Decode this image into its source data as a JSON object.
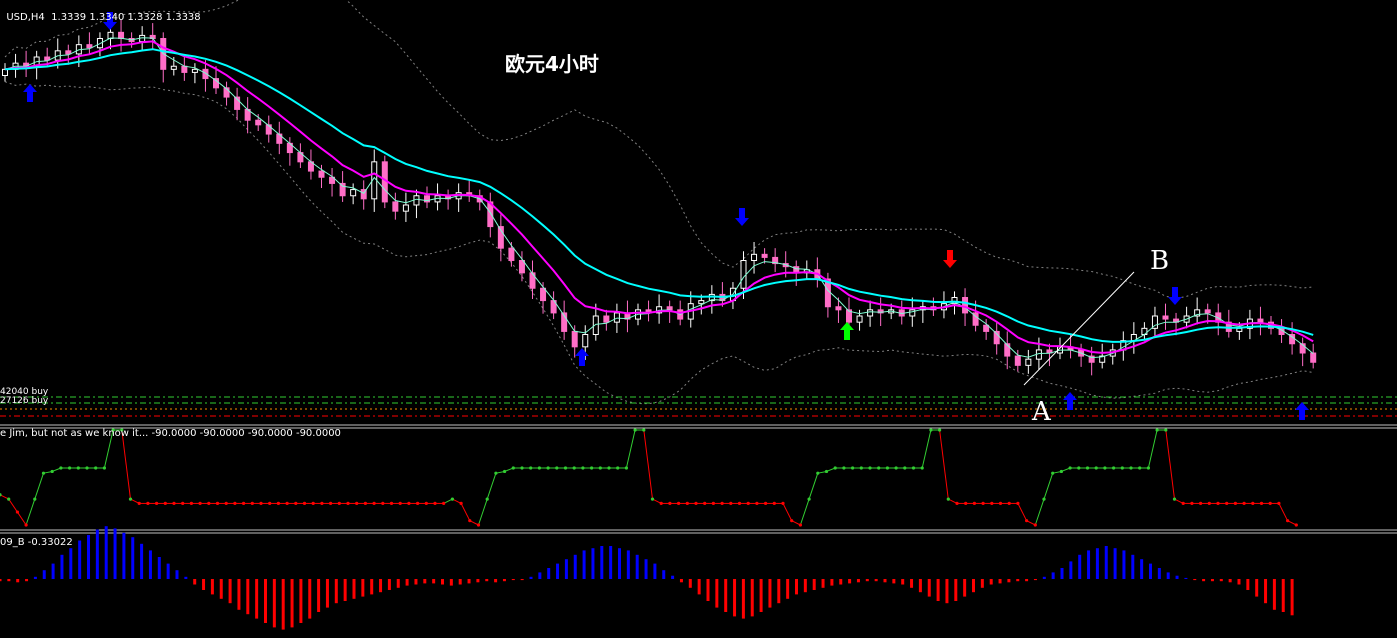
{
  "header": {
    "symbol": "USD,H4",
    "ohlc": "1.3339 1.3340 1.3328 1.3338"
  },
  "overlay_title": "欧元4小时",
  "annotations": {
    "a": "A",
    "b": "B"
  },
  "level_labels": [
    "42040 buy",
    "27126 buy"
  ],
  "indicator1": {
    "label": "e Jim, but not as we know it... -90.0000 -90.0000 -90.0000 -90.0000"
  },
  "indicator2": {
    "label": "09_B -0.33022"
  },
  "colors": {
    "background": "#000000",
    "bull_candle": "#ffffff",
    "bear_candle": "#ff6ec7",
    "ma_fast": "#ff00ff",
    "ma_slow": "#00ffff",
    "band": "#808080",
    "arrow_blue": "#0000ff",
    "arrow_red": "#ff0000",
    "arrow_green": "#00ff00",
    "osc_green": "#32cd32",
    "osc_red": "#ff0000",
    "hist_blue": "#0000ff",
    "hist_red": "#ff0000"
  },
  "chart_data": [
    {
      "type": "candlestick",
      "close": [
        1.3318,
        1.3322,
        1.332,
        1.3326,
        1.3324,
        1.333,
        1.3328,
        1.3334,
        1.3332,
        1.3338,
        1.3342,
        1.3338,
        1.3336,
        1.334,
        1.3338,
        1.3318,
        1.332,
        1.3316,
        1.3318,
        1.3312,
        1.3306,
        1.33,
        1.3292,
        1.3285,
        1.3282,
        1.3276,
        1.327,
        1.3264,
        1.3258,
        1.3252,
        1.3248,
        1.3244,
        1.3236,
        1.324,
        1.3234,
        1.3258,
        1.3232,
        1.3226,
        1.323,
        1.3236,
        1.3232,
        1.3236,
        1.3234,
        1.3238,
        1.3236,
        1.3232,
        1.3216,
        1.3202,
        1.3194,
        1.3186,
        1.3176,
        1.3168,
        1.316,
        1.3148,
        1.3138,
        1.3146,
        1.3158,
        1.3154,
        1.316,
        1.3156,
        1.3162,
        1.316,
        1.3164,
        1.3162,
        1.3156,
        1.3166,
        1.3168,
        1.3172,
        1.3168,
        1.3176,
        1.3194,
        1.3198,
        1.3196,
        1.3192,
        1.319,
        1.3186,
        1.3188,
        1.3182,
        1.3164,
        1.3162,
        1.3154,
        1.3158,
        1.3162,
        1.316,
        1.3162,
        1.3158,
        1.3162,
        1.3164,
        1.3162,
        1.3166,
        1.317,
        1.316,
        1.3152,
        1.3148,
        1.314,
        1.3132,
        1.3126,
        1.313,
        1.3136,
        1.3134,
        1.3138,
        1.3136,
        1.3132,
        1.3128,
        1.3132,
        1.3136,
        1.3142,
        1.3146,
        1.315,
        1.3158,
        1.3156,
        1.3154,
        1.3158,
        1.3162,
        1.316,
        1.3154,
        1.3148,
        1.315,
        1.3156,
        1.3154,
        1.315,
        1.3146,
        1.314,
        1.3134,
        1.3128
      ]
    },
    {
      "type": "line",
      "name": "oscillator",
      "values": [
        -55,
        -60,
        -75,
        -90,
        -60,
        -30,
        -28,
        -24,
        -24,
        -24,
        -24,
        -24,
        -24,
        20,
        20,
        -60,
        -65,
        -65,
        -65,
        -65,
        -65,
        -65,
        -65,
        -65,
        -65,
        -65,
        -65,
        -65,
        -65,
        -65,
        -65,
        -65,
        -65,
        -65,
        -65,
        -65,
        -65,
        -65,
        -65,
        -65,
        -65,
        -65,
        -65,
        -65,
        -65,
        -65,
        -65,
        -65,
        -65,
        -65,
        -65,
        -65,
        -60,
        -65,
        -85,
        -90,
        -60,
        -30,
        -28,
        -24,
        -24,
        -24,
        -24,
        -24,
        -24,
        -24,
        -24,
        -24,
        -24,
        -24,
        -24,
        -24,
        -24,
        20,
        20,
        -60,
        -65,
        -65,
        -65,
        -65,
        -65,
        -65,
        -65,
        -65,
        -65,
        -65,
        -65,
        -65,
        -65,
        -65,
        -65,
        -85,
        -90,
        -60,
        -30,
        -28,
        -24,
        -24,
        -24,
        -24,
        -24,
        -24,
        -24,
        -24,
        -24,
        -24,
        -24,
        20,
        20,
        -60,
        -65,
        -65,
        -65,
        -65,
        -65,
        -65,
        -65,
        -65,
        -85,
        -90,
        -60,
        -30,
        -28,
        -24,
        -24,
        -24,
        -24,
        -24,
        -24,
        -24,
        -24,
        -24,
        -24,
        20,
        20,
        -60,
        -65,
        -65,
        -65,
        -65,
        -65,
        -65,
        -65,
        -65,
        -65,
        -65,
        -65,
        -65,
        -85,
        -90
      ]
    },
    {
      "type": "bar",
      "name": "histogram",
      "values": [
        -0.02,
        -0.02,
        -0.03,
        -0.02,
        0.02,
        0.08,
        0.14,
        0.22,
        0.28,
        0.35,
        0.4,
        0.45,
        0.48,
        0.46,
        0.42,
        0.38,
        0.32,
        0.26,
        0.2,
        0.14,
        0.08,
        0.02,
        -0.05,
        -0.1,
        -0.14,
        -0.18,
        -0.22,
        -0.28,
        -0.32,
        -0.36,
        -0.4,
        -0.44,
        -0.46,
        -0.44,
        -0.4,
        -0.36,
        -0.3,
        -0.26,
        -0.22,
        -0.2,
        -0.18,
        -0.16,
        -0.14,
        -0.12,
        -0.1,
        -0.08,
        -0.06,
        -0.05,
        -0.04,
        -0.04,
        -0.05,
        -0.06,
        -0.05,
        -0.04,
        -0.03,
        -0.02,
        -0.03,
        -0.02,
        -0.01,
        -0.01,
        0.02,
        0.06,
        0.1,
        0.14,
        0.18,
        0.22,
        0.26,
        0.28,
        0.3,
        0.3,
        0.28,
        0.26,
        0.22,
        0.18,
        0.14,
        0.08,
        0.03,
        -0.03,
        -0.08,
        -0.14,
        -0.2,
        -0.26,
        -0.3,
        -0.34,
        -0.36,
        -0.34,
        -0.3,
        -0.26,
        -0.22,
        -0.18,
        -0.14,
        -0.12,
        -0.1,
        -0.08,
        -0.06,
        -0.05,
        -0.04,
        -0.03,
        -0.02,
        -0.02,
        -0.03,
        -0.04,
        -0.05,
        -0.08,
        -0.12,
        -0.16,
        -0.2,
        -0.22,
        -0.2,
        -0.16,
        -0.12,
        -0.08,
        -0.05,
        -0.04,
        -0.03,
        -0.02,
        -0.02,
        -0.01,
        0.02,
        0.06,
        0.1,
        0.16,
        0.22,
        0.26,
        0.28,
        0.3,
        0.28,
        0.26,
        0.22,
        0.18,
        0.14,
        0.1,
        0.06,
        0.03,
        0.01,
        -0.01,
        -0.02,
        -0.02,
        -0.02,
        -0.03,
        -0.05,
        -0.1,
        -0.16,
        -0.22,
        -0.28,
        -0.3,
        -0.33
      ]
    }
  ]
}
